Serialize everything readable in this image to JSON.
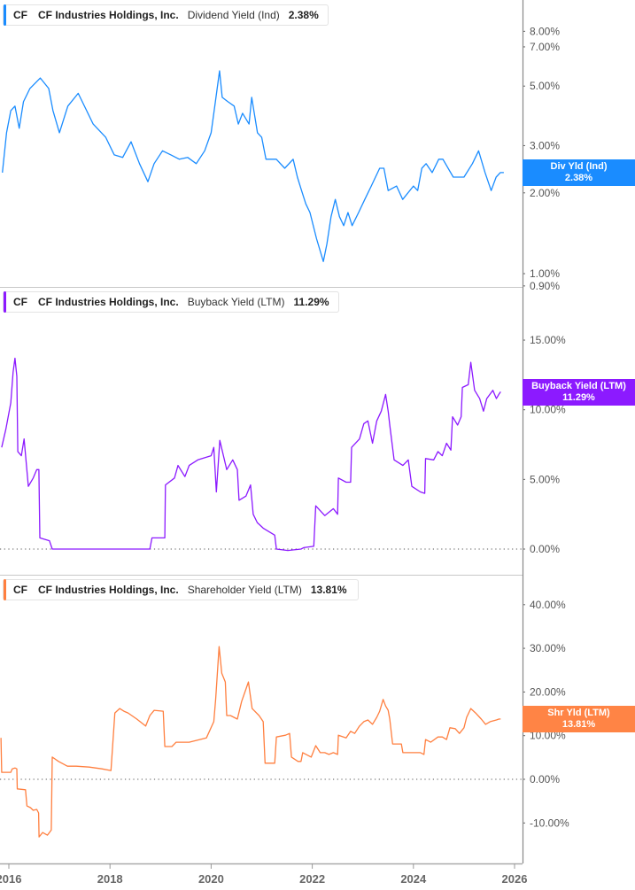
{
  "chart_data": [
    {
      "type": "line",
      "legend": {
        "ticker": "CF",
        "company": "CF Industries Holdings, Inc.",
        "metric": "Dividend Yield (Ind)",
        "value": "2.38%"
      },
      "badge": {
        "label": "Div Yld (Ind)",
        "value": "2.38%"
      },
      "color": "#1a8cff",
      "y_scale": "log",
      "y_ticks": [
        8,
        7,
        5,
        3,
        2,
        1,
        0.9
      ],
      "y_tick_labels": [
        "8.00%",
        "7.00%",
        "5.00%",
        "3.00%",
        "2.00%",
        "1.00%",
        "0.90%"
      ],
      "zero_line": false,
      "series": [
        [
          "2015-11-15",
          2.38
        ],
        [
          "2015-12-15",
          3.35
        ],
        [
          "2016-01-15",
          4.05
        ],
        [
          "2016-02-15",
          4.21
        ],
        [
          "2016-03-15",
          3.48
        ],
        [
          "2016-04-15",
          4.37
        ],
        [
          "2016-06-01",
          4.9
        ],
        [
          "2016-08-15",
          5.36
        ],
        [
          "2016-10-15",
          4.9
        ],
        [
          "2016-11-15",
          4.05
        ],
        [
          "2017-01-01",
          3.35
        ],
        [
          "2017-03-01",
          4.21
        ],
        [
          "2017-05-15",
          4.7
        ],
        [
          "2017-07-15",
          4.05
        ],
        [
          "2017-09-01",
          3.61
        ],
        [
          "2017-12-01",
          3.22
        ],
        [
          "2018-02-01",
          2.77
        ],
        [
          "2018-04-01",
          2.71
        ],
        [
          "2018-06-01",
          3.1
        ],
        [
          "2018-08-01",
          2.57
        ],
        [
          "2018-10-01",
          2.2
        ],
        [
          "2018-11-15",
          2.57
        ],
        [
          "2019-01-15",
          2.87
        ],
        [
          "2019-03-15",
          2.77
        ],
        [
          "2019-05-15",
          2.67
        ],
        [
          "2019-07-15",
          2.71
        ],
        [
          "2019-09-15",
          2.57
        ],
        [
          "2019-11-15",
          2.87
        ],
        [
          "2020-01-01",
          3.35
        ],
        [
          "2020-02-01",
          4.37
        ],
        [
          "2020-03-01",
          5.7
        ],
        [
          "2020-03-20",
          4.54
        ],
        [
          "2020-05-01",
          4.37
        ],
        [
          "2020-06-15",
          4.21
        ],
        [
          "2020-07-15",
          3.61
        ],
        [
          "2020-08-15",
          3.96
        ],
        [
          "2020-10-01",
          3.61
        ],
        [
          "2020-10-20",
          4.54
        ],
        [
          "2020-12-01",
          3.35
        ],
        [
          "2021-01-01",
          3.22
        ],
        [
          "2021-02-01",
          2.67
        ],
        [
          "2021-04-15",
          2.67
        ],
        [
          "2021-06-15",
          2.47
        ],
        [
          "2021-08-15",
          2.67
        ],
        [
          "2021-09-15",
          2.29
        ],
        [
          "2021-10-15",
          2.04
        ],
        [
          "2021-11-15",
          1.82
        ],
        [
          "2021-12-15",
          1.69
        ],
        [
          "2022-02-01",
          1.35
        ],
        [
          "2022-03-20",
          1.11
        ],
        [
          "2022-04-15",
          1.29
        ],
        [
          "2022-05-15",
          1.63
        ],
        [
          "2022-06-15",
          1.89
        ],
        [
          "2022-07-15",
          1.63
        ],
        [
          "2022-08-15",
          1.51
        ],
        [
          "2022-09-15",
          1.69
        ],
        [
          "2022-10-15",
          1.51
        ],
        [
          "2022-12-01",
          1.69
        ],
        [
          "2023-01-15",
          1.89
        ],
        [
          "2023-03-01",
          2.12
        ],
        [
          "2023-05-01",
          2.47
        ],
        [
          "2023-06-01",
          2.47
        ],
        [
          "2023-07-01",
          2.04
        ],
        [
          "2023-09-01",
          2.12
        ],
        [
          "2023-10-15",
          1.89
        ],
        [
          "2024-01-01",
          2.12
        ],
        [
          "2024-02-01",
          2.04
        ],
        [
          "2024-03-01",
          2.47
        ],
        [
          "2024-04-01",
          2.57
        ],
        [
          "2024-05-15",
          2.38
        ],
        [
          "2024-07-01",
          2.67
        ],
        [
          "2024-08-01",
          2.67
        ],
        [
          "2024-10-15",
          2.29
        ],
        [
          "2025-01-01",
          2.29
        ],
        [
          "2025-03-01",
          2.57
        ],
        [
          "2025-04-15",
          2.87
        ],
        [
          "2025-06-01",
          2.38
        ],
        [
          "2025-07-15",
          2.04
        ],
        [
          "2025-08-20",
          2.29
        ],
        [
          "2025-09-20",
          2.38
        ],
        [
          "2025-10-15",
          2.38
        ]
      ]
    },
    {
      "type": "line",
      "legend": {
        "ticker": "CF",
        "company": "CF Industries Holdings, Inc.",
        "metric": "Buyback Yield (LTM)",
        "value": "11.29%"
      },
      "badge": {
        "label": "Buyback Yield (LTM)",
        "value": "11.29%"
      },
      "color": "#8c1aff",
      "y_scale": "linear",
      "y_ticks": [
        15,
        10,
        5,
        0
      ],
      "y_tick_labels": [
        "15.00%",
        "10.00%",
        "5.00%",
        "0.00%"
      ],
      "zero_line": true,
      "series": [
        [
          "2015-11-10",
          7.3
        ],
        [
          "2015-12-10",
          8.6
        ],
        [
          "2016-01-15",
          10.5
        ],
        [
          "2016-02-01",
          12.7
        ],
        [
          "2016-02-15",
          13.7
        ],
        [
          "2016-02-28",
          12.4
        ],
        [
          "2016-03-05",
          7.0
        ],
        [
          "2016-03-30",
          6.7
        ],
        [
          "2016-04-20",
          7.9
        ],
        [
          "2016-05-20",
          4.5
        ],
        [
          "2016-06-25",
          5.1
        ],
        [
          "2016-07-20",
          5.7
        ],
        [
          "2016-08-05",
          5.7
        ],
        [
          "2016-08-12",
          0.8
        ],
        [
          "2016-10-20",
          0.6
        ],
        [
          "2016-11-10",
          0
        ],
        [
          "2018-10-15",
          0
        ],
        [
          "2018-10-30",
          0.8
        ],
        [
          "2019-02-01",
          0.8
        ],
        [
          "2019-02-06",
          4.6
        ],
        [
          "2019-04-10",
          5.1
        ],
        [
          "2019-05-05",
          6.0
        ],
        [
          "2019-06-25",
          5.2
        ],
        [
          "2019-07-25",
          6.0
        ],
        [
          "2019-09-27",
          6.4
        ],
        [
          "2020-01-01",
          6.7
        ],
        [
          "2020-01-20",
          7.3
        ],
        [
          "2020-02-08",
          4.1
        ],
        [
          "2020-03-03",
          7.8
        ],
        [
          "2020-04-22",
          5.7
        ],
        [
          "2020-06-05",
          6.4
        ],
        [
          "2020-07-08",
          5.7
        ],
        [
          "2020-07-20",
          3.5
        ],
        [
          "2020-09-09",
          3.8
        ],
        [
          "2020-10-12",
          4.6
        ],
        [
          "2020-10-31",
          2.5
        ],
        [
          "2020-11-30",
          1.9
        ],
        [
          "2021-01-12",
          1.5
        ],
        [
          "2021-04-04",
          1.0
        ],
        [
          "2021-04-16",
          0
        ],
        [
          "2021-07-07",
          -0.1
        ],
        [
          "2021-10-11",
          0
        ],
        [
          "2021-10-30",
          0.1
        ],
        [
          "2022-01-12",
          0.2
        ],
        [
          "2022-01-26",
          3.1
        ],
        [
          "2022-03-30",
          2.4
        ],
        [
          "2022-06-01",
          2.9
        ],
        [
          "2022-07-01",
          2.5
        ],
        [
          "2022-07-07",
          5.1
        ],
        [
          "2022-09-02",
          4.8
        ],
        [
          "2022-10-04",
          4.8
        ],
        [
          "2022-10-11",
          7.3
        ],
        [
          "2022-12-07",
          7.9
        ],
        [
          "2023-01-08",
          9.0
        ],
        [
          "2023-02-07",
          9.2
        ],
        [
          "2023-03-10",
          7.6
        ],
        [
          "2023-04-10",
          9.2
        ],
        [
          "2023-05-12",
          9.9
        ],
        [
          "2023-06-13",
          11.1
        ],
        [
          "2023-07-01",
          9.9
        ],
        [
          "2023-07-13",
          8.9
        ],
        [
          "2023-08-14",
          6.4
        ],
        [
          "2023-10-16",
          6.0
        ],
        [
          "2023-11-25",
          6.4
        ],
        [
          "2023-12-20",
          4.5
        ],
        [
          "2024-02-21",
          4.1
        ],
        [
          "2024-03-22",
          4.0
        ],
        [
          "2024-03-28",
          6.5
        ],
        [
          "2024-05-26",
          6.4
        ],
        [
          "2024-06-26",
          7.0
        ],
        [
          "2024-07-27",
          6.7
        ],
        [
          "2024-08-27",
          7.6
        ],
        [
          "2024-09-28",
          7.1
        ],
        [
          "2024-10-10",
          9.5
        ],
        [
          "2024-11-16",
          8.9
        ],
        [
          "2024-12-11",
          9.5
        ],
        [
          "2024-12-20",
          11.6
        ],
        [
          "2025-02-01",
          11.8
        ],
        [
          "2025-02-20",
          13.4
        ],
        [
          "2025-03-17",
          11.4
        ],
        [
          "2025-04-23",
          10.8
        ],
        [
          "2025-05-20",
          9.9
        ],
        [
          "2025-06-13",
          10.8
        ],
        [
          "2025-07-27",
          11.4
        ],
        [
          "2025-08-22",
          10.8
        ],
        [
          "2025-09-09",
          11.1
        ],
        [
          "2025-09-22",
          11.29
        ]
      ]
    },
    {
      "type": "line",
      "legend": {
        "ticker": "CF",
        "company": "CF Industries Holdings, Inc.",
        "metric": "Shareholder Yield (LTM)",
        "value": "13.81%"
      },
      "badge": {
        "label": "Shr Yld (LTM)",
        "value": "13.81%"
      },
      "color": "#ff7f3f",
      "y_scale": "linear",
      "y_ticks": [
        40,
        30,
        20,
        10,
        0,
        -10
      ],
      "y_tick_labels": [
        "40.00%",
        "30.00%",
        "20.00%",
        "10.00%",
        "0.00%",
        "-10.00%"
      ],
      "zero_line": true,
      "series": [
        [
          "2015-11-05",
          9.5
        ],
        [
          "2015-11-10",
          1.6
        ],
        [
          "2016-01-15",
          1.6
        ],
        [
          "2016-01-25",
          2.4
        ],
        [
          "2016-02-15",
          2.6
        ],
        [
          "2016-02-28",
          2.4
        ],
        [
          "2016-03-01",
          -2.2
        ],
        [
          "2016-04-30",
          -2.4
        ],
        [
          "2016-05-10",
          -6.1
        ],
        [
          "2016-06-05",
          -6.5
        ],
        [
          "2016-06-25",
          -7.1
        ],
        [
          "2016-07-20",
          -6.9
        ],
        [
          "2016-08-03",
          -7.7
        ],
        [
          "2016-08-06",
          -13.2
        ],
        [
          "2016-09-01",
          -12.2
        ],
        [
          "2016-10-05",
          -12.8
        ],
        [
          "2016-10-20",
          -12.2
        ],
        [
          "2016-11-03",
          -11.6
        ],
        [
          "2016-11-10",
          5.1
        ],
        [
          "2016-12-25",
          4.1
        ],
        [
          "2017-02-28",
          3.0
        ],
        [
          "2017-05-01",
          3.0
        ],
        [
          "2017-08-03",
          2.8
        ],
        [
          "2017-11-03",
          2.4
        ],
        [
          "2018-01-08",
          2.0
        ],
        [
          "2018-02-06",
          15.2
        ],
        [
          "2018-03-10",
          16.2
        ],
        [
          "2018-04-10",
          15.6
        ],
        [
          "2018-05-10",
          15.2
        ],
        [
          "2018-07-12",
          13.8
        ],
        [
          "2018-09-15",
          12.2
        ],
        [
          "2018-10-15",
          14.6
        ],
        [
          "2018-11-16",
          15.8
        ],
        [
          "2019-01-20",
          15.6
        ],
        [
          "2019-02-01",
          7.5
        ],
        [
          "2019-03-22",
          7.5
        ],
        [
          "2019-04-22",
          8.5
        ],
        [
          "2019-07-25",
          8.5
        ],
        [
          "2019-11-28",
          9.5
        ],
        [
          "2020-01-20",
          13.2
        ],
        [
          "2020-02-03",
          18.3
        ],
        [
          "2020-02-28",
          30.4
        ],
        [
          "2020-03-17",
          24.3
        ],
        [
          "2020-04-12",
          22.3
        ],
        [
          "2020-04-22",
          14.6
        ],
        [
          "2020-05-19",
          14.6
        ],
        [
          "2020-07-08",
          13.8
        ],
        [
          "2020-08-08",
          17.8
        ],
        [
          "2020-09-27",
          22.3
        ],
        [
          "2020-10-23",
          16.2
        ],
        [
          "2020-12-12",
          14.6
        ],
        [
          "2021-01-12",
          13.2
        ],
        [
          "2021-01-25",
          3.7
        ],
        [
          "2021-04-04",
          3.7
        ],
        [
          "2021-04-16",
          9.7
        ],
        [
          "2021-06-21",
          10.1
        ],
        [
          "2021-07-20",
          10.5
        ],
        [
          "2021-08-03",
          5.1
        ],
        [
          "2021-09-20",
          4.1
        ],
        [
          "2021-10-11",
          4.1
        ],
        [
          "2021-10-23",
          6.1
        ],
        [
          "2021-12-24",
          5.1
        ],
        [
          "2022-01-26",
          7.7
        ],
        [
          "2022-02-28",
          6.1
        ],
        [
          "2022-03-30",
          6.1
        ],
        [
          "2022-04-30",
          5.7
        ],
        [
          "2022-06-01",
          6.1
        ],
        [
          "2022-07-01",
          5.7
        ],
        [
          "2022-07-07",
          10.1
        ],
        [
          "2022-09-02",
          9.5
        ],
        [
          "2022-10-04",
          11.0
        ],
        [
          "2022-11-03",
          10.5
        ],
        [
          "2022-12-07",
          12.2
        ],
        [
          "2023-01-08",
          13.2
        ],
        [
          "2023-02-07",
          13.6
        ],
        [
          "2023-03-10",
          12.6
        ],
        [
          "2023-04-10",
          14.2
        ],
        [
          "2023-05-01",
          15.6
        ],
        [
          "2023-05-26",
          18.3
        ],
        [
          "2023-06-13",
          16.8
        ],
        [
          "2023-07-01",
          15.8
        ],
        [
          "2023-07-13",
          13.8
        ],
        [
          "2023-08-03",
          8.1
        ],
        [
          "2023-09-16",
          8.1
        ],
        [
          "2023-10-05",
          8.1
        ],
        [
          "2023-10-16",
          6.1
        ],
        [
          "2023-12-20",
          6.1
        ],
        [
          "2024-02-21",
          6.1
        ],
        [
          "2024-03-16",
          5.7
        ],
        [
          "2024-03-28",
          9.1
        ],
        [
          "2024-05-04",
          8.5
        ],
        [
          "2024-06-26",
          9.7
        ],
        [
          "2024-07-27",
          9.7
        ],
        [
          "2024-08-27",
          9.1
        ],
        [
          "2024-09-21",
          11.8
        ],
        [
          "2024-10-29",
          11.6
        ],
        [
          "2024-11-29",
          10.5
        ],
        [
          "2025-01-01",
          11.8
        ],
        [
          "2025-01-20",
          14.2
        ],
        [
          "2025-02-20",
          16.2
        ],
        [
          "2025-03-24",
          15.2
        ],
        [
          "2025-05-04",
          13.8
        ],
        [
          "2025-06-05",
          12.6
        ],
        [
          "2025-07-08",
          13.2
        ],
        [
          "2025-08-22",
          13.6
        ],
        [
          "2025-09-09",
          13.8
        ],
        [
          "2025-09-22",
          13.81
        ]
      ]
    }
  ],
  "x_axis": {
    "ticks": [
      "2016-01-01",
      "2018-01-01",
      "2020-01-01",
      "2022-01-01",
      "2024-01-01",
      "2026-01-01"
    ],
    "tick_labels": [
      "2016",
      "2018",
      "2020",
      "2022",
      "2024",
      "2026"
    ]
  }
}
